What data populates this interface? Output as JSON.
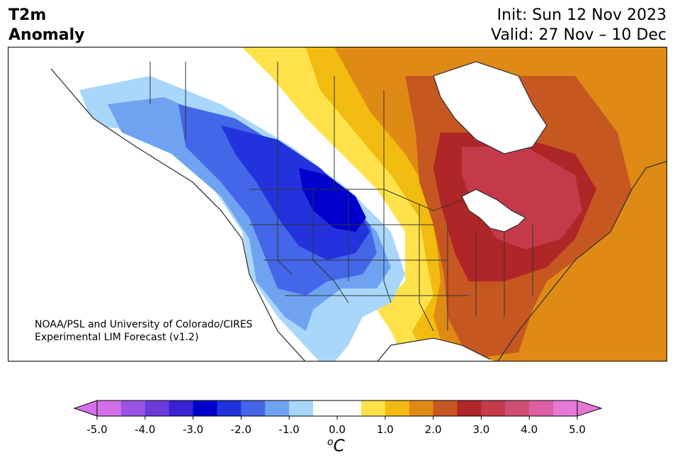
{
  "header": {
    "title_line1": "T2m",
    "title_line2": "Anomaly",
    "init": "Init: Sun 12 Nov 2023",
    "valid": "Valid: 27 Nov – 10 Dec"
  },
  "credit": {
    "line1": "NOAA/PSL and University of Colorado/CIRES",
    "line2": "Experimental LIM Forecast (v1.2)"
  },
  "colorbar": {
    "tick_labels": [
      "-5.0",
      "-4.0",
      "-3.0",
      "-2.0",
      "-1.0",
      "0.0",
      "1.0",
      "2.0",
      "3.0",
      "4.0",
      "5.0"
    ],
    "units_base": "C",
    "units_sup": "o",
    "colors": [
      "#d46fe8",
      "#9a53e3",
      "#6a3bdb",
      "#3a22d4",
      "#0000cd",
      "#2233dd",
      "#4466e8",
      "#6fa3f2",
      "#a8d7fb",
      "#ffffff",
      "#ffffff",
      "#ffe24a",
      "#f2bb0f",
      "#e08a16",
      "#c65720",
      "#b02527",
      "#c53a4a",
      "#d04e74",
      "#dc5fa4",
      "#e678d8"
    ]
  },
  "map_colors": {
    "white": "#ffffff",
    "lightblue": "#a8d7fb",
    "blue1": "#6fa3f2",
    "blue2": "#4466e8",
    "blue3": "#2233dd",
    "blue4": "#0000cd",
    "yellow": "#ffe24a",
    "gold": "#f2bb0f",
    "orange": "#e08a16",
    "burnt": "#c65720",
    "red": "#b02527",
    "crimson": "#c53a4a",
    "border": "#333333"
  }
}
